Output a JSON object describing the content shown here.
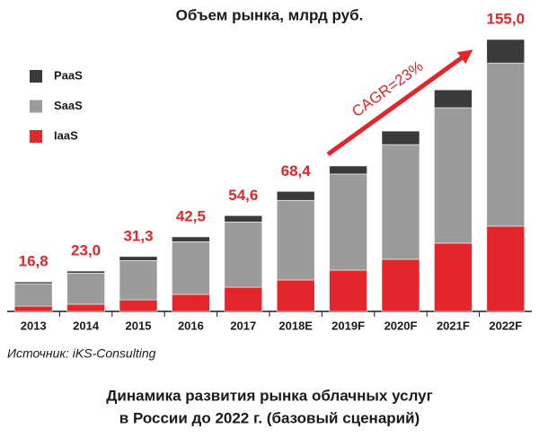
{
  "chart_data": {
    "type": "stacked_bar",
    "title": "Объем рынка, млрд руб.",
    "categories": [
      "2013",
      "2014",
      "2015",
      "2016",
      "2017",
      "2018E",
      "2019F",
      "2020F",
      "2021F",
      "2022F"
    ],
    "series": [
      {
        "name": "IaaS",
        "color": "#e3262b",
        "values": [
          3.0,
          4.1,
          6.6,
          9.7,
          13.8,
          17.9,
          23.5,
          29.7,
          38.9,
          48.6
        ]
      },
      {
        "name": "SaaS",
        "color": "#9b9b9b",
        "values": [
          12.8,
          17.7,
          22.4,
          30.0,
          37.2,
          45.4,
          54.8,
          65.4,
          77.2,
          93.0
        ]
      },
      {
        "name": "PaaS",
        "color": "#3a3a3a",
        "values": [
          1.0,
          1.2,
          2.3,
          2.8,
          3.6,
          5.1,
          4.6,
          7.7,
          10.2,
          13.4
        ]
      }
    ],
    "totals": [
      16.8,
      23.0,
      31.3,
      42.5,
      54.6,
      68.4,
      null,
      null,
      null,
      155.0
    ],
    "total_labels": [
      "16,8",
      "23,0",
      "31,3",
      "42,5",
      "54,6",
      "68,4",
      null,
      null,
      null,
      "155,0"
    ],
    "annotation": "CAGR=23%",
    "source": "Источник: iKS-Consulting",
    "caption": [
      "Динамика развития рынка облачных услуг",
      "в России до 2022 г. (базовый сценарий)"
    ]
  }
}
